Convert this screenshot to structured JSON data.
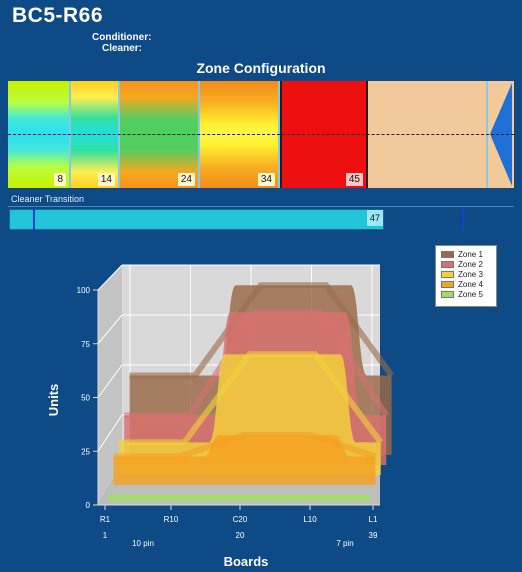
{
  "header": {
    "title": "BC5-R66",
    "conditioner_label": "Conditioner:",
    "cleaner_label": "Cleaner:"
  },
  "zone_config": {
    "title": "Zone Configuration",
    "zone_values": [
      "8",
      "14",
      "24",
      "34",
      "45"
    ]
  },
  "cleaner_transition": {
    "label": "Cleaner Transition",
    "value": "47"
  },
  "chart": {
    "legend": [
      "Zone 1",
      "Zone 2",
      "Zone 3",
      "Zone 4",
      "Zone 5"
    ],
    "colors": [
      "#9a6a48",
      "#d97070",
      "#f2d23a",
      "#f5a21f",
      "#9fe060"
    ],
    "ylabel": "Units",
    "xlabel": "Boards",
    "y_ticks": [
      "100",
      "75",
      "50",
      "25",
      "0"
    ],
    "x_ticks": [
      "R1",
      "R10",
      "C20",
      "L10",
      "L1"
    ],
    "x_sub_numbers": [
      "1",
      "20",
      "39"
    ],
    "pin_labels": [
      "10 pin",
      "7 pin"
    ]
  },
  "chart_data": {
    "type": "area",
    "ylabel": "Units",
    "xlabel": "Boards",
    "ylim": [
      0,
      100
    ],
    "x": [
      "R1",
      "R10",
      "C20",
      "L10",
      "L1"
    ],
    "series": [
      {
        "name": "Zone 1",
        "values": [
          50,
          50,
          92,
          92,
          50
        ]
      },
      {
        "name": "Zone 2",
        "values": [
          34,
          34,
          82,
          82,
          34
        ]
      },
      {
        "name": "Zone 3",
        "values": [
          24,
          24,
          65,
          65,
          24
        ]
      },
      {
        "name": "Zone 4",
        "values": [
          20,
          20,
          30,
          30,
          20
        ]
      },
      {
        "name": "Zone 5",
        "values": [
          3,
          3,
          3,
          3,
          3
        ]
      }
    ],
    "grid": true,
    "legend_position": "top-right"
  }
}
